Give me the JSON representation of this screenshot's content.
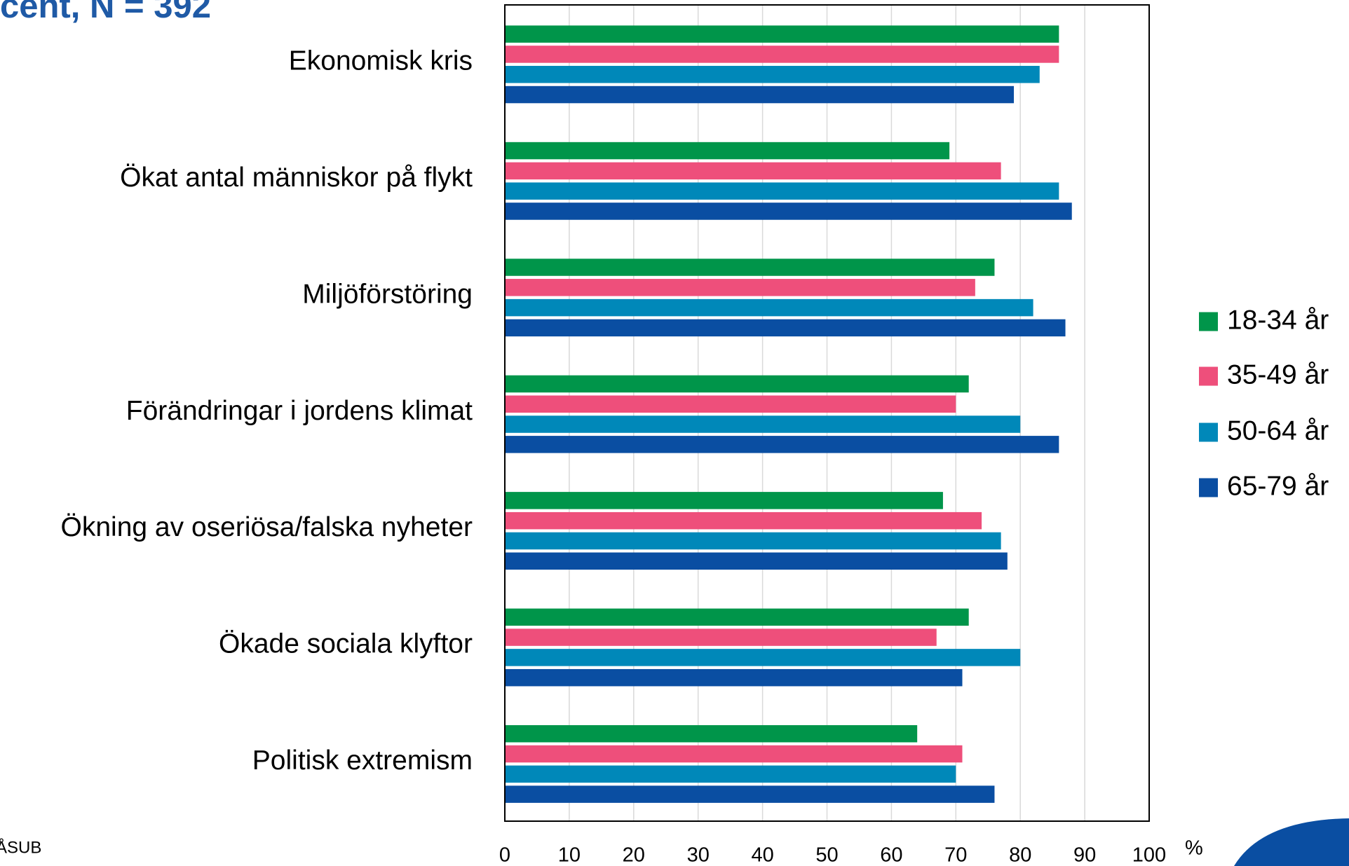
{
  "chart_data": {
    "type": "hbar",
    "title": "cent, N = 392",
    "source": "ÅSUB",
    "x_unit": "%",
    "categories": [
      "Ekonomisk kris",
      "Ökat antal människor på flykt",
      "Miljöförstöring",
      "Förändringar i jordens klimat",
      "Ökning av oseriösa/falska nyheter",
      "Ökade sociala klyftor",
      "Politisk extremism"
    ],
    "series": [
      {
        "name": "18-34 år",
        "color": "#00954a",
        "values": [
          86,
          69,
          76,
          72,
          68,
          72,
          64
        ]
      },
      {
        "name": "35-49 år",
        "color": "#ee4f7b",
        "values": [
          86,
          77,
          73,
          70,
          74,
          67,
          71
        ]
      },
      {
        "name": "50-64 år",
        "color": "#0088b9",
        "values": [
          83,
          86,
          82,
          80,
          77,
          80,
          70
        ]
      },
      {
        "name": "65-79 år",
        "color": "#0a4ea2",
        "values": [
          79,
          88,
          87,
          86,
          78,
          71,
          76
        ]
      }
    ],
    "xlim": [
      0,
      100
    ],
    "xticks": [
      0,
      10,
      20,
      30,
      40,
      50,
      60,
      70,
      80,
      90,
      100
    ],
    "grid": true,
    "legend": "right"
  }
}
